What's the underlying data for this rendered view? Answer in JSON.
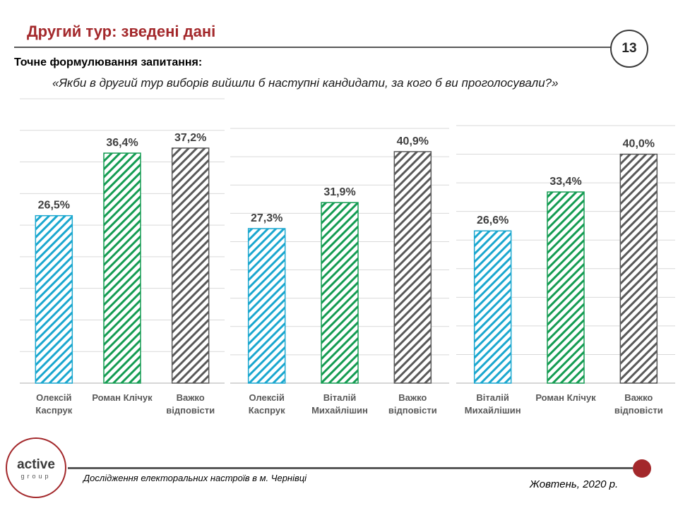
{
  "header": {
    "title": "Другий тур: зведені дані",
    "page_number": "13"
  },
  "question": {
    "label": "Точне формулювання запитання:",
    "text": "«Якби в другий тур виборів вийшли б наступні кандидати, за кого б ви проголосували?»"
  },
  "colors": {
    "blue": "#1aa7cf",
    "green": "#149c52",
    "gray": "#595959",
    "accent": "#a3282b"
  },
  "chart_data": [
    {
      "type": "bar",
      "categories": [
        [
          "Олексій",
          "Каспрук"
        ],
        [
          "Роман Клічук"
        ],
        [
          "Важко",
          "відповісти"
        ]
      ],
      "values": [
        26.5,
        36.4,
        37.2
      ],
      "labels": [
        "26,5%",
        "36,4%",
        "37,2%"
      ],
      "colors": [
        "blue",
        "green",
        "gray"
      ],
      "ylim": [
        0,
        45
      ],
      "grid": true
    },
    {
      "type": "bar",
      "categories": [
        [
          "Олексій",
          "Каспрук"
        ],
        [
          "Віталій",
          "Михайлішин"
        ],
        [
          "Важко",
          "відповісти"
        ]
      ],
      "values": [
        27.3,
        31.9,
        40.9
      ],
      "labels": [
        "27,3%",
        "31,9%",
        "40,9%"
      ],
      "colors": [
        "blue",
        "green",
        "gray"
      ],
      "ylim": [
        0,
        45
      ],
      "grid": true
    },
    {
      "type": "bar",
      "categories": [
        [
          "Віталій",
          "Михайлішин"
        ],
        [
          "Роман Клічук"
        ],
        [
          "Важко",
          "відповісти"
        ]
      ],
      "values": [
        26.6,
        33.4,
        40.0
      ],
      "labels": [
        "26,6%",
        "33,4%",
        "40,0%"
      ],
      "colors": [
        "blue",
        "green",
        "gray"
      ],
      "ylim": [
        0,
        45
      ],
      "grid": true
    }
  ],
  "logo": {
    "word": "active",
    "sub": "group"
  },
  "footer": {
    "study": "Дослідження електоральних настроїв в  м. Чернівці",
    "date": "Жовтень, 2020 р."
  }
}
